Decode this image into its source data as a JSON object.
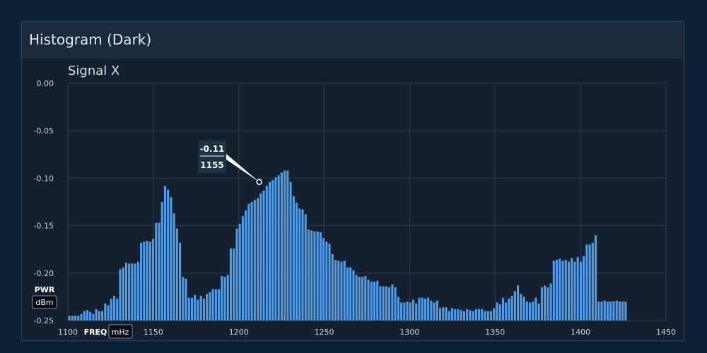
{
  "panel": {
    "title": "Histogram (Dark)"
  },
  "chart_data": {
    "type": "bar",
    "title": "Signal X",
    "xlabel": "FREQ",
    "xunit": "mHz",
    "ylabel": "PWR",
    "yunit": "dBm",
    "xlim": [
      1100,
      1450
    ],
    "ylim": [
      -0.25,
      0
    ],
    "xticks": [
      1100,
      1150,
      1200,
      1250,
      1300,
      1350,
      1400,
      1450
    ],
    "yticks": [
      0,
      -0.05,
      -0.1,
      -0.15,
      -0.2,
      -0.25
    ],
    "bin_width": 1.75,
    "bin_start": 1100,
    "grid": true,
    "bar_color": "#4d9ce8",
    "tooltip": {
      "value": "-0.11",
      "label": "1155",
      "point": [
        1212,
        -0.104
      ]
    },
    "values": [
      -0.245,
      -0.245,
      -0.245,
      -0.245,
      -0.243,
      -0.24,
      -0.239,
      -0.241,
      -0.243,
      -0.238,
      -0.24,
      -0.24,
      -0.232,
      -0.234,
      -0.227,
      -0.224,
      -0.227,
      -0.196,
      -0.194,
      -0.189,
      -0.19,
      -0.19,
      -0.19,
      -0.188,
      -0.168,
      -0.167,
      -0.166,
      -0.167,
      -0.164,
      -0.147,
      -0.147,
      -0.125,
      -0.108,
      -0.112,
      -0.12,
      -0.137,
      -0.153,
      -0.168,
      -0.204,
      -0.206,
      -0.226,
      -0.226,
      -0.223,
      -0.228,
      -0.224,
      -0.227,
      -0.222,
      -0.22,
      -0.217,
      -0.217,
      -0.217,
      -0.203,
      -0.204,
      -0.202,
      -0.174,
      -0.174,
      -0.153,
      -0.148,
      -0.14,
      -0.134,
      -0.127,
      -0.125,
      -0.123,
      -0.121,
      -0.116,
      -0.113,
      -0.108,
      -0.104,
      -0.102,
      -0.099,
      -0.097,
      -0.094,
      -0.092,
      -0.092,
      -0.104,
      -0.119,
      -0.126,
      -0.132,
      -0.133,
      -0.138,
      -0.154,
      -0.155,
      -0.156,
      -0.156,
      -0.157,
      -0.163,
      -0.167,
      -0.169,
      -0.18,
      -0.186,
      -0.187,
      -0.188,
      -0.187,
      -0.194,
      -0.194,
      -0.197,
      -0.202,
      -0.204,
      -0.204,
      -0.203,
      -0.207,
      -0.209,
      -0.209,
      -0.208,
      -0.214,
      -0.214,
      -0.214,
      -0.215,
      -0.212,
      -0.215,
      -0.225,
      -0.231,
      -0.231,
      -0.23,
      -0.231,
      -0.228,
      -0.232,
      -0.226,
      -0.226,
      -0.227,
      -0.226,
      -0.229,
      -0.231,
      -0.229,
      -0.237,
      -0.236,
      -0.236,
      -0.24,
      -0.237,
      -0.238,
      -0.238,
      -0.239,
      -0.24,
      -0.238,
      -0.239,
      -0.24,
      -0.238,
      -0.238,
      -0.238,
      -0.24,
      -0.24,
      -0.24,
      -0.237,
      -0.231,
      -0.233,
      -0.226,
      -0.231,
      -0.227,
      -0.224,
      -0.219,
      -0.213,
      -0.222,
      -0.225,
      -0.23,
      -0.231,
      -0.23,
      -0.226,
      -0.232,
      -0.215,
      -0.213,
      -0.215,
      -0.211,
      -0.187,
      -0.186,
      -0.185,
      -0.187,
      -0.186,
      -0.188,
      -0.184,
      -0.188,
      -0.183,
      -0.188,
      -0.182,
      -0.17,
      -0.17,
      -0.168,
      -0.16,
      -0.23,
      -0.23,
      -0.229,
      -0.23,
      -0.23,
      -0.23,
      -0.229,
      -0.23,
      -0.23,
      -0.23
    ]
  }
}
